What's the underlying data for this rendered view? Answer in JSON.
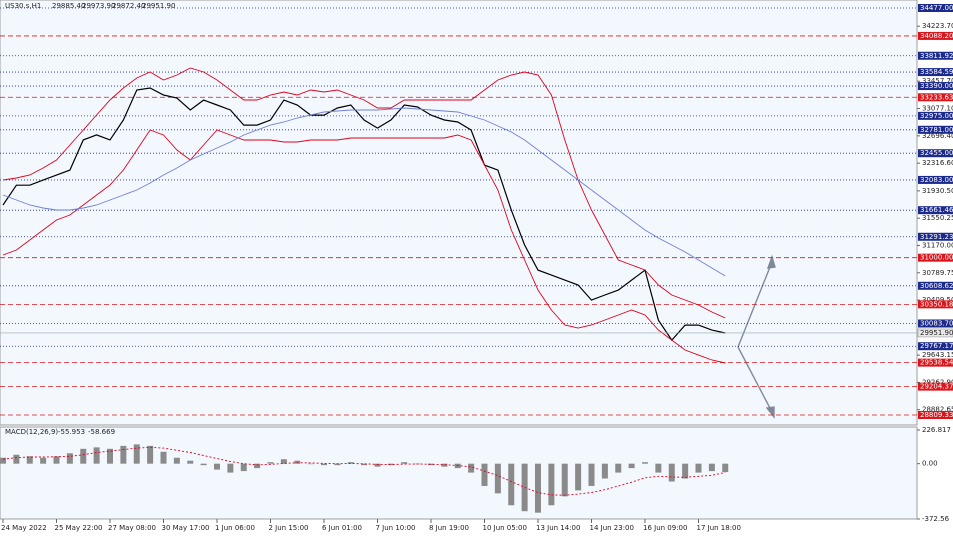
{
  "chart_data": [
    {
      "type": "line",
      "title": "US30.s,H1",
      "header_prices": [
        {
          "value": 29885.4,
          "label": "29885.40"
        },
        {
          "value": 29973.9,
          "label": "29973.90"
        },
        {
          "value": 29872.4,
          "label": "29872.40"
        },
        {
          "value": 29951.9,
          "label": "29951.90"
        }
      ],
      "categories": [
        "24 May 2022",
        null,
        null,
        null,
        "25 May 22:00",
        null,
        null,
        null,
        "27 May 08:00",
        null,
        null,
        null,
        "30 May 17:00",
        null,
        null,
        null,
        "1 Jun 06:00",
        null,
        null,
        null,
        "2 Jun 15:00",
        null,
        null,
        null,
        "6 Jun 01:00",
        null,
        null,
        null,
        "7 Jun 10:00",
        null,
        null,
        null,
        "8 Jun 19:00",
        null,
        null,
        null,
        "10 Jun 05:00",
        null,
        null,
        null,
        "13 Jun 14:00",
        null,
        null,
        null,
        "14 Jun 23:00",
        null,
        null,
        null,
        "16 Jun 09:00",
        null,
        null,
        null,
        "17 Jun 18:00",
        null,
        null
      ],
      "series": [
        {
          "name": "Close",
          "color": "#000000",
          "values": [
            31733,
            32010,
            32010,
            32080,
            32150,
            32220,
            32640,
            32710,
            32640,
            32917,
            33335,
            33363,
            33265,
            33223,
            33056,
            33195,
            33126,
            33056,
            32847,
            32847,
            32917,
            33195,
            33126,
            32986,
            32986,
            33084,
            33126,
            32917,
            32805,
            32917,
            33126,
            33098,
            32986,
            32917,
            32889,
            32778,
            32290,
            32220,
            31663,
            31176,
            30827,
            30758,
            30688,
            30619,
            30410,
            30480,
            30549,
            30688,
            30827,
            30130,
            29852,
            30061,
            30061,
            29991,
            29951.9
          ]
        },
        {
          "name": "Upper band",
          "color": "#e0001a",
          "values": [
            32082,
            32110,
            32152,
            32249,
            32360,
            32569,
            32778,
            32987,
            33196,
            33363,
            33502,
            33586,
            33474,
            33544,
            33641,
            33586,
            33474,
            33335,
            33196,
            33196,
            33265,
            33307,
            33265,
            33335,
            33307,
            33335,
            33265,
            33196,
            33084,
            33084,
            33196,
            33196,
            33196,
            33196,
            33196,
            33196,
            33335,
            33474,
            33544,
            33586,
            33544,
            33265,
            32639,
            32082,
            31664,
            31316,
            30968,
            30898,
            30828,
            30619,
            30480,
            30411,
            30341,
            30243,
            30160
          ]
        },
        {
          "name": "Lower band",
          "color": "#e0001a",
          "values": [
            31037,
            31107,
            31246,
            31385,
            31525,
            31594,
            31734,
            31873,
            32012,
            32221,
            32500,
            32778,
            32708,
            32500,
            32360,
            32569,
            32778,
            32708,
            32639,
            32639,
            32639,
            32611,
            32611,
            32639,
            32639,
            32639,
            32667,
            32667,
            32667,
            32667,
            32667,
            32667,
            32667,
            32667,
            32708,
            32639,
            32291,
            31943,
            31385,
            30968,
            30550,
            30271,
            30062,
            30020,
            30062,
            30132,
            30202,
            30271,
            30202,
            29993,
            29853,
            29714,
            29644,
            29575,
            29533
          ]
        },
        {
          "name": "Moving average",
          "color": "#6f7fd8",
          "values": [
            31873,
            31803,
            31734,
            31692,
            31664,
            31664,
            31692,
            31734,
            31803,
            31873,
            31943,
            32040,
            32152,
            32249,
            32360,
            32444,
            32527,
            32611,
            32708,
            32778,
            32848,
            32889,
            32945,
            32987,
            33029,
            33043,
            33056,
            33056,
            33056,
            33070,
            33084,
            33070,
            33056,
            33043,
            33029,
            32973,
            32917,
            32834,
            32750,
            32639,
            32500,
            32360,
            32221,
            32082,
            31943,
            31803,
            31664,
            31525,
            31385,
            31274,
            31177,
            31079,
            30968,
            30856,
            30745
          ]
        }
      ],
      "ylim": [
        28809.33,
        34477
      ],
      "yticks": [
        {
          "value": 34223.7,
          "label": "34223.70"
        },
        {
          "value": 33457.7,
          "label": "33457.70"
        },
        {
          "value": 33077.1,
          "label": "33077.10"
        },
        {
          "value": 32696.4,
          "label": "32696.40"
        },
        {
          "value": 32316.6,
          "label": "32316.60"
        },
        {
          "value": 31930.5,
          "label": "31930.50"
        },
        {
          "value": 31550.25,
          "label": "31550.25"
        },
        {
          "value": 31170,
          "label": "31170.00"
        },
        {
          "value": 30789.75,
          "label": "30789.75"
        },
        {
          "value": 30409.5,
          "label": "30409.50"
        },
        {
          "value": 29643.15,
          "label": "29643.15"
        },
        {
          "value": 29262.9,
          "label": "29262.90"
        },
        {
          "value": 28882.65,
          "label": "28882.65"
        }
      ],
      "levels": [
        {
          "value": 34477,
          "label": "34477.00",
          "color": "#1c2a8c",
          "line_style": "dot"
        },
        {
          "value": 34088.2,
          "label": "34088.20",
          "color": "#d9161c",
          "line_style": "dash"
        },
        {
          "value": 33811.92,
          "label": "33811.92",
          "color": "#1c2a8c",
          "line_style": "dot"
        },
        {
          "value": 33584.59,
          "label": "33584.59",
          "color": "#1c2a8c",
          "line_style": "dot"
        },
        {
          "value": 33390,
          "label": "33390.00",
          "color": "#1c2a8c",
          "line_style": "dot"
        },
        {
          "value": 33233.63,
          "label": "33233.63",
          "color": "#d9161c",
          "line_style": "dash"
        },
        {
          "value": 32975,
          "label": "32975.00",
          "color": "#1c2a8c",
          "line_style": "dot"
        },
        {
          "value": 32781,
          "label": "32781.00",
          "color": "#1c2a8c",
          "line_style": "dot"
        },
        {
          "value": 32455,
          "label": "32455.00",
          "color": "#1c2a8c",
          "line_style": "dot"
        },
        {
          "value": 32083,
          "label": "32083.00",
          "color": "#1c2a8c",
          "line_style": "dot"
        },
        {
          "value": 31661.46,
          "label": "31661.46",
          "color": "#1c2a8c",
          "line_style": "dot"
        },
        {
          "value": 31291.23,
          "label": "31291.23",
          "color": "#1c2a8c",
          "line_style": "dot"
        },
        {
          "value": 31000,
          "label": "31000.00",
          "color": "#d9161c",
          "line_style": "dash"
        },
        {
          "value": 30608.62,
          "label": "30608.62",
          "color": "#1c2a8c",
          "line_style": "dot"
        },
        {
          "value": 30350.18,
          "label": "30350.18",
          "color": "#d9161c",
          "line_style": "dash"
        },
        {
          "value": 30083.7,
          "label": "30083.70",
          "color": "#1c2a8c",
          "line_style": "dot"
        },
        {
          "value": 29767.17,
          "label": "29767.17",
          "color": "#1c2a8c",
          "line_style": "dot"
        },
        {
          "value": 29538.54,
          "label": "29538.54",
          "color": "#d9161c",
          "line_style": "dash"
        },
        {
          "value": 29204.37,
          "label": "29204.37",
          "color": "#d9161c",
          "line_style": "dash"
        },
        {
          "value": 28809.33,
          "label": "28809.33",
          "color": "#d9161c",
          "line_style": "dash"
        }
      ],
      "current_price": {
        "value": 29951.9,
        "label": "29951.90"
      }
    },
    {
      "type": "bar",
      "title": "MACD(12,26,9)",
      "legend_values": [
        -55.953,
        -58.669
      ],
      "color": "#8a8a8a",
      "values": [
        40,
        60,
        50,
        40,
        50,
        70,
        100,
        110,
        100,
        120,
        130,
        120,
        80,
        40,
        20,
        -10,
        -40,
        -60,
        -50,
        -30,
        10,
        30,
        20,
        0,
        -10,
        -10,
        10,
        -10,
        -20,
        -10,
        10,
        0,
        -10,
        -20,
        -30,
        -60,
        -150,
        -200,
        -280,
        -320,
        -330,
        -280,
        -220,
        -180,
        -150,
        -100,
        -60,
        -30,
        10,
        -60,
        -120,
        -100,
        -60,
        -50,
        -55.953
      ],
      "series": [
        {
          "name": "Signal",
          "color": "#e0001a",
          "values": [
            30,
            40,
            45,
            45,
            46,
            50,
            60,
            75,
            85,
            95,
            105,
            110,
            105,
            90,
            75,
            55,
            35,
            15,
            0,
            -8,
            -5,
            2,
            6,
            5,
            2,
            0,
            1,
            -1,
            -5,
            -6,
            -3,
            -2,
            -4,
            -7,
            -12,
            -22,
            -50,
            -80,
            -120,
            -160,
            -195,
            -210,
            -212,
            -205,
            -194,
            -175,
            -150,
            -125,
            -95,
            -85,
            -90,
            -92,
            -85,
            -78,
            -58.669
          ]
        }
      ],
      "ylim": [
        -372.56,
        226.817
      ],
      "yticks": [
        226.817,
        {
          "value": 0,
          "label": "0.00"
        },
        -372.56
      ]
    }
  ]
}
